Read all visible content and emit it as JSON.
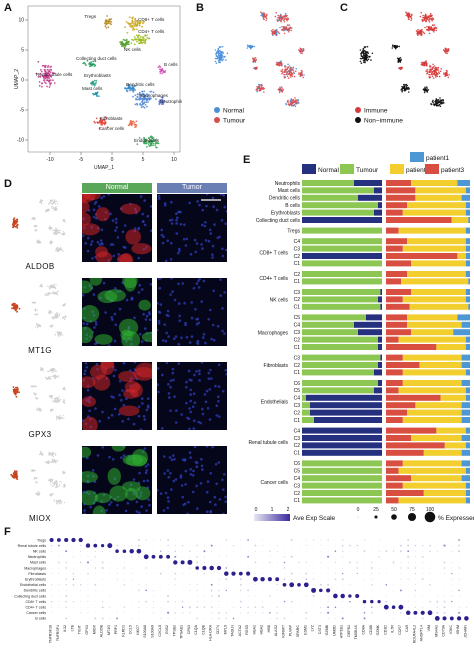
{
  "panels": {
    "a": "A",
    "b": "B",
    "c": "C",
    "d": "D",
    "e": "E",
    "f": "F"
  },
  "panel_a": {
    "xlabel": "UMAP_1",
    "ylabel": "UMAP_2",
    "xticks": [
      "-10",
      "-5",
      "0",
      "5",
      "10"
    ],
    "yticks": [
      "10",
      "5",
      "0",
      "-5",
      "-10"
    ],
    "clusters": [
      {
        "name": "Tregs",
        "color": "#b48a1e"
      },
      {
        "name": "CD8+ T cells",
        "color": "#c8a81c"
      },
      {
        "name": "CD4+ T cells",
        "color": "#9ab81a"
      },
      {
        "name": "NK cells",
        "color": "#58a030"
      },
      {
        "name": "Renal tubule cells",
        "color": "#c2368a"
      },
      {
        "name": "Collecting duct cells",
        "color": "#1e9a5a"
      },
      {
        "name": "Erythroblasts",
        "color": "#2a9f88"
      },
      {
        "name": "B cells",
        "color": "#d04fb0"
      },
      {
        "name": "Mast cells",
        "color": "#1d93a6"
      },
      {
        "name": "Dendritic cells",
        "color": "#3288c8"
      },
      {
        "name": "Macrophages",
        "color": "#4f86d6"
      },
      {
        "name": "Neutrophils",
        "color": "#5d78d9"
      },
      {
        "name": "Fibroblasts",
        "color": "#e1473b"
      },
      {
        "name": "Endothelials",
        "color": "#33a352"
      },
      {
        "name": "Cancer cells",
        "color": "#e86a4a"
      }
    ]
  },
  "panel_b": {
    "legend": [
      {
        "label": "Normal",
        "color": "#4a90d9"
      },
      {
        "label": "Tumour",
        "color": "#d94d4d"
      }
    ]
  },
  "panel_c": {
    "legend": [
      {
        "label": "Immune",
        "color": "#d73b3b"
      },
      {
        "label": "Non−immune",
        "color": "#111111"
      }
    ]
  },
  "panel_d": {
    "headers": {
      "normal": "Normal",
      "tumor": "Tumor"
    },
    "header_colors": {
      "normal": "#5aa75a",
      "tumor": "#6a7fb4"
    },
    "genes": [
      "ALDOB",
      "MT1G",
      "GPX3",
      "MIOX"
    ],
    "stain_colors": [
      "#d02525",
      "#2fae2f",
      "#d02525",
      "#2fae2f"
    ]
  },
  "panel_e": {
    "legend_left": [
      {
        "label": "Normal",
        "color": "#25307f"
      },
      {
        "label": "Tumour",
        "color": "#8cc653"
      }
    ],
    "legend_right": [
      {
        "label": "patient1",
        "color": "#4c97d4"
      },
      {
        "label": "patient2",
        "color": "#f2cf2f"
      },
      {
        "label": "patient3",
        "color": "#d84e40"
      }
    ],
    "rows": [
      {
        "label": "Neutrophils",
        "normal": 0.35,
        "p1": 0.15,
        "p2": 0.55,
        "p3": 0.3,
        "group_gap": 0
      },
      {
        "label": "Mast cells",
        "normal": 0.1,
        "p1": 0.05,
        "p2": 0.6,
        "p3": 0.35,
        "group_gap": 0
      },
      {
        "label": "Dendritic cells",
        "normal": 0.3,
        "p1": 0.1,
        "p2": 0.55,
        "p3": 0.35,
        "group_gap": 0
      },
      {
        "label": "B cells",
        "normal": 0.05,
        "p1": 0.05,
        "p2": 0.7,
        "p3": 0.25,
        "group_gap": 0
      },
      {
        "label": "Erythroblasts",
        "normal": 0.1,
        "p1": 0.05,
        "p2": 0.75,
        "p3": 0.2,
        "group_gap": 0
      },
      {
        "label": "Collecting duct cells",
        "normal": 1.0,
        "p1": 0.02,
        "p2": 0.2,
        "p3": 0.78,
        "group_gap": 0
      },
      {
        "label": "Tregs",
        "normal": 0.0,
        "p1": 0.05,
        "p2": 0.8,
        "p3": 0.15,
        "group_gap": 1
      },
      {
        "label": "C4",
        "normal": 0.0,
        "p1": 0.05,
        "p2": 0.7,
        "p3": 0.25,
        "group_gap": 1
      },
      {
        "label": "C3",
        "normal": 0.0,
        "p1": 0.05,
        "p2": 0.75,
        "p3": 0.2,
        "group_gap": 0
      },
      {
        "label": "C2",
        "normal": 1.0,
        "p1": 0.05,
        "p2": 0.1,
        "p3": 0.85,
        "group_gap": 0
      },
      {
        "label": "C1",
        "normal": 0.0,
        "p1": 0.05,
        "p2": 0.65,
        "p3": 0.3,
        "group_gap": 0
      },
      {
        "label": "C2",
        "normal": 0.0,
        "p1": 0.05,
        "p2": 0.7,
        "p3": 0.25,
        "group_gap": 1
      },
      {
        "label": "C1",
        "normal": 0.0,
        "p1": 0.02,
        "p2": 0.8,
        "p3": 0.18,
        "group_gap": 0
      },
      {
        "label": "C3",
        "normal": 0.02,
        "p1": 0.05,
        "p2": 0.65,
        "p3": 0.3,
        "group_gap": 1
      },
      {
        "label": "C2",
        "normal": 0.05,
        "p1": 0.05,
        "p2": 0.75,
        "p3": 0.2,
        "group_gap": 0
      },
      {
        "label": "C1",
        "normal": 0.02,
        "p1": 0.02,
        "p2": 0.7,
        "p3": 0.28,
        "group_gap": 0
      },
      {
        "label": "C5",
        "normal": 0.2,
        "p1": 0.15,
        "p2": 0.6,
        "p3": 0.25,
        "group_gap": 1
      },
      {
        "label": "C4",
        "normal": 0.35,
        "p1": 0.1,
        "p2": 0.65,
        "p3": 0.25,
        "group_gap": 0
      },
      {
        "label": "C3",
        "normal": 0.3,
        "p1": 0.2,
        "p2": 0.5,
        "p3": 0.3,
        "group_gap": 0
      },
      {
        "label": "C2",
        "normal": 0.05,
        "p1": 0.05,
        "p2": 0.8,
        "p3": 0.15,
        "group_gap": 0
      },
      {
        "label": "C1",
        "normal": 0.05,
        "p1": 0.05,
        "p2": 0.35,
        "p3": 0.6,
        "group_gap": 0
      },
      {
        "label": "C3",
        "normal": 0.02,
        "p1": 0.1,
        "p2": 0.7,
        "p3": 0.2,
        "group_gap": 1
      },
      {
        "label": "C2",
        "normal": 0.05,
        "p1": 0.1,
        "p2": 0.5,
        "p3": 0.4,
        "group_gap": 0
      },
      {
        "label": "C1",
        "normal": 0.1,
        "p1": 0.05,
        "p2": 0.75,
        "p3": 0.2,
        "group_gap": 0
      },
      {
        "label": "C6",
        "normal": 0.05,
        "p1": 0.1,
        "p2": 0.7,
        "p3": 0.2,
        "group_gap": 1
      },
      {
        "label": "C5",
        "normal": 0.1,
        "p1": 0.05,
        "p2": 0.8,
        "p3": 0.15,
        "group_gap": 0
      },
      {
        "label": "C4",
        "normal": 0.95,
        "p1": 0.05,
        "p2": 0.3,
        "p3": 0.65,
        "group_gap": 0
      },
      {
        "label": "C3",
        "normal": 0.9,
        "p1": 0.1,
        "p2": 0.55,
        "p3": 0.35,
        "group_gap": 0
      },
      {
        "label": "C2",
        "normal": 0.9,
        "p1": 0.1,
        "p2": 0.65,
        "p3": 0.25,
        "group_gap": 0
      },
      {
        "label": "C1",
        "normal": 0.85,
        "p1": 0.1,
        "p2": 0.7,
        "p3": 0.2,
        "group_gap": 0
      },
      {
        "label": "C4",
        "normal": 1.0,
        "p1": 0.05,
        "p2": 0.35,
        "p3": 0.6,
        "group_gap": 1
      },
      {
        "label": "C3",
        "normal": 1.0,
        "p1": 0.1,
        "p2": 0.6,
        "p3": 0.3,
        "group_gap": 0
      },
      {
        "label": "C2",
        "normal": 1.0,
        "p1": 0.05,
        "p2": 0.25,
        "p3": 0.7,
        "group_gap": 0
      },
      {
        "label": "C1",
        "normal": 1.0,
        "p1": 0.1,
        "p2": 0.45,
        "p3": 0.45,
        "group_gap": 0
      },
      {
        "label": "C6",
        "normal": 0.0,
        "p1": 0.1,
        "p2": 0.7,
        "p3": 0.2,
        "group_gap": 1
      },
      {
        "label": "C5",
        "normal": 0.0,
        "p1": 0.05,
        "p2": 0.8,
        "p3": 0.15,
        "group_gap": 0
      },
      {
        "label": "C4",
        "normal": 0.0,
        "p1": 0.1,
        "p2": 0.6,
        "p3": 0.3,
        "group_gap": 0
      },
      {
        "label": "C3",
        "normal": 0.0,
        "p1": 0.05,
        "p2": 0.75,
        "p3": 0.2,
        "group_gap": 0
      },
      {
        "label": "C2",
        "normal": 0.0,
        "p1": 0.05,
        "p2": 0.5,
        "p3": 0.45,
        "group_gap": 0
      },
      {
        "label": "C1",
        "normal": 0.0,
        "p1": 0.05,
        "p2": 0.8,
        "p3": 0.15,
        "group_gap": 0
      }
    ],
    "group_labels": [
      {
        "label": "CD8+ T cells",
        "row_start": 7,
        "row_end": 10
      },
      {
        "label": "CD4+ T cells",
        "row_start": 11,
        "row_end": 12
      },
      {
        "label": "NK cells",
        "row_start": 13,
        "row_end": 15
      },
      {
        "label": "Macrophages",
        "row_start": 16,
        "row_end": 20
      },
      {
        "label": "Fibroblasts",
        "row_start": 21,
        "row_end": 23
      },
      {
        "label": "Endothelials",
        "row_start": 24,
        "row_end": 29
      },
      {
        "label": "Renal tubule cells",
        "row_start": 30,
        "row_end": 33
      },
      {
        "label": "Cancer cells",
        "row_start": 34,
        "row_end": 39
      }
    ],
    "scale_legend": {
      "exp_title": "Ave Exp Scale",
      "exp_ticks": [
        "0",
        "1",
        "2"
      ],
      "pct_ticks": [
        "0",
        "25",
        "50",
        "75",
        "100"
      ],
      "pct_title": "% Expressed"
    }
  },
  "panel_f": {
    "rows": [
      "Tregs",
      "Renal tubule cells",
      "NK cells",
      "Neutrophils",
      "Mast cells",
      "Macrophages",
      "Fibroblasts",
      "Erythroblasts",
      "Endothelial cells",
      "Dendritic cells",
      "Collecting duct cells",
      "CD8+ T cells",
      "CD4+ T cells",
      "Cancer cells",
      "B cells"
    ],
    "genes": [
      "TNFRSF18",
      "TNFRSF4",
      "IL32",
      "LTB",
      "TIGIT",
      "GPX3",
      "MIOX",
      "ALDOB",
      "MT1G",
      "PRF1",
      "KLRD1",
      "CCL5",
      "NKG7",
      "S100A8",
      "S100A9",
      "CXCL8",
      "G0S2",
      "TPSB2",
      "TPSAB1",
      "CPA3",
      "C1QA",
      "C1QB",
      "HLA-DRA",
      "CD74",
      "MYL9",
      "TAGLN",
      "ACTA2",
      "RGS5",
      "HBA1",
      "HBA2",
      "HBB",
      "ALAS2",
      "IGFBP7",
      "PLVAP",
      "SPARC",
      "ESM1",
      "LYZ",
      "CST3",
      "GZMB",
      "UMOD",
      "ATP1B1",
      "DEFB1",
      "TMSB4X",
      "CD8A",
      "CD8B",
      "GZMK",
      "CD3D",
      "IL7R",
      "CCR7",
      "CA9",
      "NDUFA4L2",
      "ANGPTL4",
      "VIM",
      "MS4A1",
      "CD79A",
      "IGKC",
      "IGHM",
      "JCHAIN"
    ]
  }
}
